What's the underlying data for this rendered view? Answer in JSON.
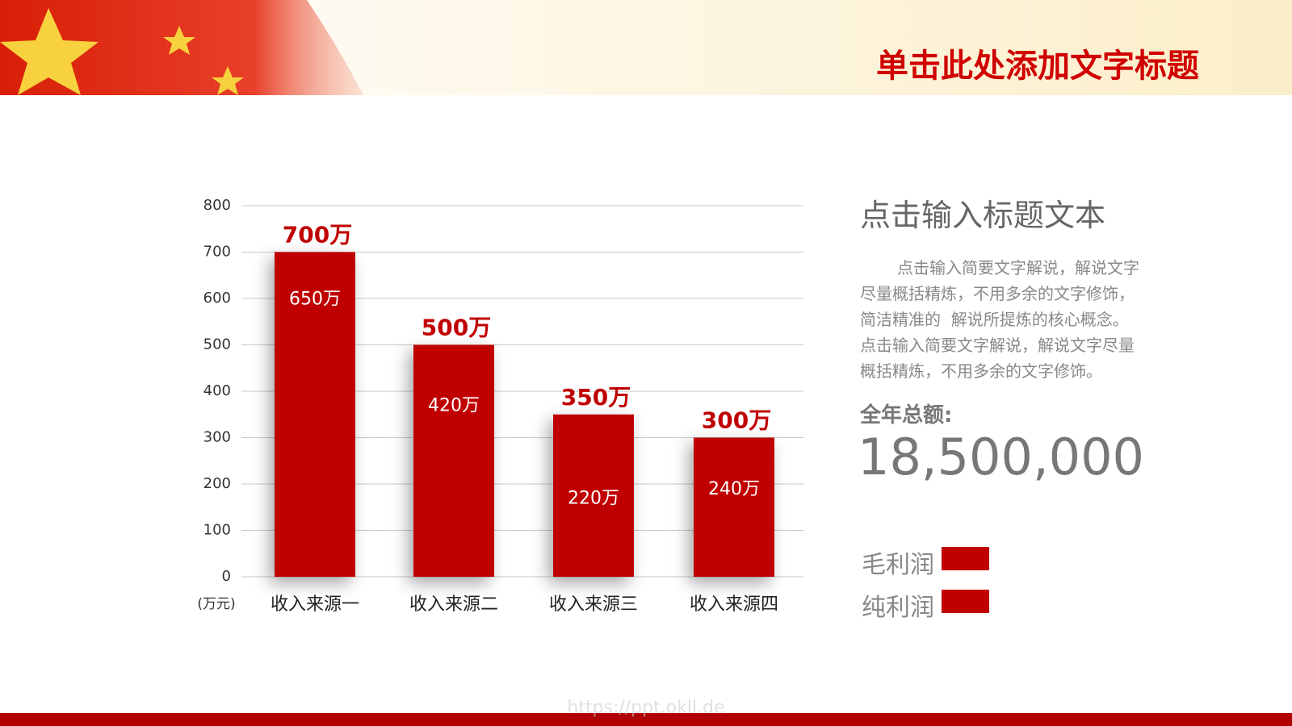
{
  "header": {
    "title": "单击此处添加文字标题"
  },
  "sidebar": {
    "title": "点击输入标题文本",
    "paragraph": [
      "点击输入简要文字解说，解说文字",
      "尽量概括精炼，不用多余的文字修饰，",
      "简洁精准的  解说所提炼的核心概念。",
      "点击输入简要文字解说，解说文字尽量",
      "概括精炼，不用多余的文字修饰。"
    ],
    "total_label": "全年总额:",
    "total_value": "18,500,000"
  },
  "watermark": "https://ppt.okll.de",
  "chart_data": {
    "type": "bar",
    "categories": [
      "收入来源一",
      "收入来源二",
      "收入来源三",
      "收入来源四"
    ],
    "ylabel": "(万元)",
    "series": [
      {
        "name": "毛利润",
        "color": "#c00000",
        "values": [
          700,
          500,
          350,
          300
        ],
        "value_labels": [
          "700万",
          "500万",
          "350万",
          "300万"
        ]
      },
      {
        "name": "纯利润",
        "color": "#c00000",
        "values": [
          650,
          420,
          220,
          240
        ],
        "value_labels": [
          "650万",
          "420万",
          "220万",
          "240万"
        ]
      }
    ],
    "ylim": [
      0,
      800
    ],
    "yticks": [
      0,
      100,
      200,
      300,
      400,
      500,
      600,
      700,
      800
    ],
    "grid": true
  }
}
